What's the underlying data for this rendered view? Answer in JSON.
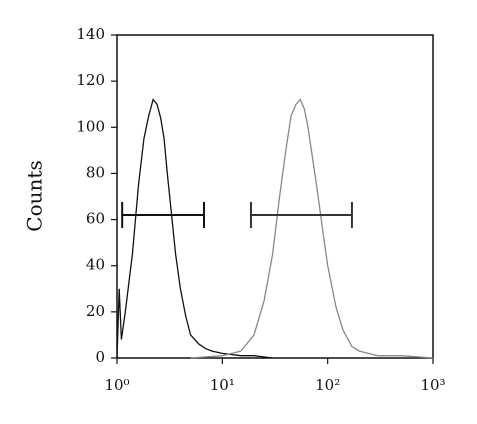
{
  "chart_data": {
    "type": "line",
    "ylabel": "Counts",
    "xscale": "log",
    "xlim": [
      1,
      1000
    ],
    "xticks": [
      {
        "value": 1,
        "label": "10⁰"
      },
      {
        "value": 10,
        "label": "10¹"
      },
      {
        "value": 100,
        "label": "10²"
      },
      {
        "value": 1000,
        "label": "10³"
      }
    ],
    "ylim": [
      0,
      140
    ],
    "yticks": [
      0,
      20,
      40,
      60,
      80,
      100,
      120,
      140
    ],
    "series": [
      {
        "color": "#111111",
        "x": [
          1.0,
          1.05,
          1.1,
          1.2,
          1.4,
          1.6,
          1.8,
          2.0,
          2.2,
          2.4,
          2.6,
          2.8,
          3.0,
          3.3,
          3.6,
          4.0,
          4.5,
          5.0,
          6.0,
          7.0,
          8.0,
          10,
          15,
          20,
          30
        ],
        "values": [
          0,
          30,
          8,
          20,
          45,
          75,
          95,
          105,
          112,
          110,
          104,
          95,
          80,
          62,
          45,
          30,
          18,
          10,
          6,
          4,
          3,
          2,
          1,
          1,
          0
        ]
      },
      {
        "color": "#888888",
        "x": [
          5,
          10,
          15,
          20,
          25,
          30,
          35,
          40,
          45,
          50,
          55,
          60,
          65,
          70,
          80,
          90,
          100,
          120,
          140,
          170,
          200,
          300,
          500,
          1000
        ],
        "values": [
          0,
          1,
          3,
          10,
          25,
          45,
          70,
          90,
          105,
          110,
          112,
          108,
          100,
          90,
          72,
          55,
          40,
          22,
          12,
          5,
          3,
          1,
          1,
          0
        ]
      }
    ],
    "gates": [
      {
        "color": "#111111",
        "x": [
          1.12,
          6.7
        ],
        "y": 62
      },
      {
        "color": "#333333",
        "x": [
          18.7,
          170
        ],
        "y": 62
      }
    ]
  }
}
